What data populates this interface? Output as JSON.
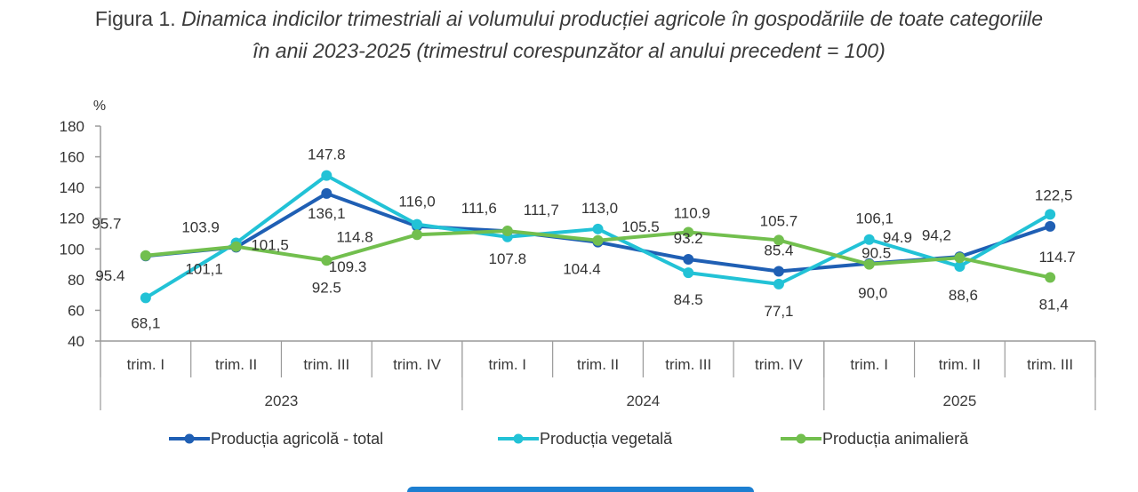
{
  "title": {
    "prefix": "Figura 1. ",
    "line1": "Dinamica indicilor trimestriali ai volumului producției agricole în gospodăriile de toate categoriile",
    "line2": "în anii 2023-2025 (trimestrul corespunzător al anului precedent = 100)"
  },
  "chart_data": {
    "type": "line",
    "title": "Figura 1. Dinamica indicilor trimestriali ai volumului producției agricole în gospodăriile de toate categoriile în anii 2023-2025 (trimestrul corespunzător al anului precedent = 100)",
    "ylabel": "%",
    "xlabel": "",
    "ylim": [
      40,
      180
    ],
    "yticks": [
      40,
      60,
      80,
      100,
      120,
      140,
      160,
      180
    ],
    "grid": false,
    "legend_position": "bottom",
    "categories": [
      "trim. I",
      "trim. II",
      "trim. III",
      "trim. IV",
      "trim. I",
      "trim. II",
      "trim. III",
      "trim. IV",
      "trim. I",
      "trim. II",
      "trim. III"
    ],
    "groups": [
      {
        "label": "2023",
        "count": 4
      },
      {
        "label": "2024",
        "count": 4
      },
      {
        "label": "2025",
        "count": 3
      }
    ],
    "series": [
      {
        "name": "Producția agricolă - total",
        "color": "#1f5fb4",
        "values": [
          95.4,
          101.1,
          136.1,
          114.8,
          111.6,
          104.4,
          93.2,
          85.4,
          90.5,
          94.9,
          114.7
        ],
        "labels": [
          "95.4",
          "101,1",
          "136,1",
          "114.8",
          "111,6",
          "104.4",
          "93.2",
          "85.4",
          "90.5",
          "94.9",
          "114.7"
        ]
      },
      {
        "name": "Producția vegetală",
        "color": "#22c2d6",
        "values": [
          68.1,
          103.9,
          147.8,
          116.0,
          107.8,
          113.0,
          84.5,
          77.1,
          106.1,
          88.6,
          122.5
        ],
        "labels": [
          "68,1",
          "103.9",
          "147.8",
          "116,0",
          "107.8",
          "113,0",
          "84.5",
          "77,1",
          "106,1",
          "88,6",
          "122,5"
        ]
      },
      {
        "name": "Producția animalieră",
        "color": "#72bf4e",
        "values": [
          95.7,
          101.5,
          92.5,
          109.3,
          111.7,
          105.5,
          110.9,
          105.7,
          90.0,
          94.2,
          81.4
        ],
        "labels": [
          "95.7",
          "101,5",
          "92.5",
          "109.3",
          "111,7",
          "105.5",
          "110.9",
          "105.7",
          "90,0",
          "94,2",
          "81,4"
        ]
      }
    ]
  }
}
